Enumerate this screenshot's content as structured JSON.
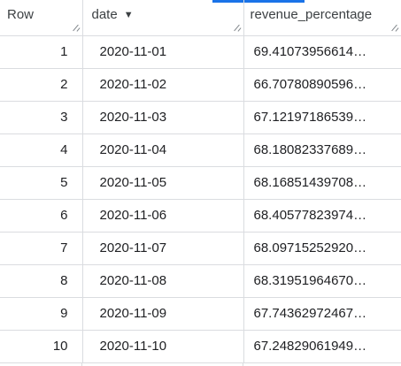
{
  "accent_color": "#1a73e8",
  "table": {
    "columns": [
      {
        "key": "row",
        "label": "Row",
        "sortable": false
      },
      {
        "key": "date",
        "label": "date",
        "sort_indicator": "▼",
        "sortable": true
      },
      {
        "key": "revenue_percentage",
        "label": "revenue_percentage",
        "sortable": false
      }
    ],
    "rows": [
      {
        "row": "1",
        "date": "2020-11-01",
        "revenue_percentage": "69.41073956614…"
      },
      {
        "row": "2",
        "date": "2020-11-02",
        "revenue_percentage": "66.70780890596…"
      },
      {
        "row": "3",
        "date": "2020-11-03",
        "revenue_percentage": "67.12197186539…"
      },
      {
        "row": "4",
        "date": "2020-11-04",
        "revenue_percentage": "68.18082337689…"
      },
      {
        "row": "5",
        "date": "2020-11-05",
        "revenue_percentage": "68.16851439708…"
      },
      {
        "row": "6",
        "date": "2020-11-06",
        "revenue_percentage": "68.40577823974…"
      },
      {
        "row": "7",
        "date": "2020-11-07",
        "revenue_percentage": "68.09715252920…"
      },
      {
        "row": "8",
        "date": "2020-11-08",
        "revenue_percentage": "68.31951964670…"
      },
      {
        "row": "9",
        "date": "2020-11-09",
        "revenue_percentage": "67.74362972467…"
      },
      {
        "row": "10",
        "date": "2020-11-10",
        "revenue_percentage": "67.24829061949…"
      }
    ]
  }
}
